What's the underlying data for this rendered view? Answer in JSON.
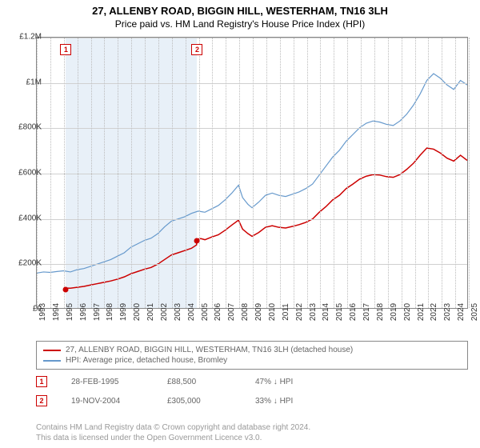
{
  "titles": {
    "line1": "27, ALLENBY ROAD, BIGGIN HILL, WESTERHAM, TN16 3LH",
    "line2": "Price paid vs. HM Land Registry's House Price Index (HPI)"
  },
  "chart": {
    "type": "line",
    "background_color": "#ffffff",
    "grid_color": "#d0d0d0",
    "shaded_region_color": "#e8f0f8",
    "x": {
      "min": 1993,
      "max": 2025,
      "tick_step": 1,
      "labels": [
        "1993",
        "1994",
        "1995",
        "1996",
        "1997",
        "1998",
        "1999",
        "2000",
        "2001",
        "2002",
        "2003",
        "2004",
        "2005",
        "2006",
        "2007",
        "2008",
        "2009",
        "2010",
        "2011",
        "2012",
        "2013",
        "2014",
        "2015",
        "2016",
        "2017",
        "2018",
        "2019",
        "2020",
        "2021",
        "2022",
        "2023",
        "2024",
        "2025"
      ]
    },
    "y": {
      "min": 0,
      "max": 1200000,
      "tick_step": 200000,
      "labels": [
        "£0",
        "£200K",
        "£400K",
        "£600K",
        "£800K",
        "£1M",
        "£1.2M"
      ]
    },
    "series": [
      {
        "name": "hpi",
        "color": "#6699cc",
        "width": 1.2,
        "points": [
          [
            1993,
            155000
          ],
          [
            1993.5,
            160000
          ],
          [
            1994,
            158000
          ],
          [
            1994.5,
            162000
          ],
          [
            1995,
            165000
          ],
          [
            1995.5,
            160000
          ],
          [
            1996,
            170000
          ],
          [
            1996.5,
            175000
          ],
          [
            1997,
            185000
          ],
          [
            1997.5,
            195000
          ],
          [
            1998,
            205000
          ],
          [
            1998.5,
            215000
          ],
          [
            1999,
            230000
          ],
          [
            1999.5,
            245000
          ],
          [
            2000,
            270000
          ],
          [
            2000.5,
            285000
          ],
          [
            2001,
            300000
          ],
          [
            2001.5,
            310000
          ],
          [
            2002,
            330000
          ],
          [
            2002.5,
            360000
          ],
          [
            2003,
            385000
          ],
          [
            2003.5,
            395000
          ],
          [
            2004,
            405000
          ],
          [
            2004.5,
            420000
          ],
          [
            2005,
            430000
          ],
          [
            2005.5,
            425000
          ],
          [
            2006,
            440000
          ],
          [
            2006.5,
            455000
          ],
          [
            2007,
            480000
          ],
          [
            2007.5,
            510000
          ],
          [
            2008,
            545000
          ],
          [
            2008.3,
            490000
          ],
          [
            2008.7,
            460000
          ],
          [
            2009,
            445000
          ],
          [
            2009.5,
            470000
          ],
          [
            2010,
            500000
          ],
          [
            2010.5,
            510000
          ],
          [
            2011,
            500000
          ],
          [
            2011.5,
            495000
          ],
          [
            2012,
            505000
          ],
          [
            2012.5,
            515000
          ],
          [
            2013,
            530000
          ],
          [
            2013.5,
            550000
          ],
          [
            2014,
            590000
          ],
          [
            2014.5,
            630000
          ],
          [
            2015,
            670000
          ],
          [
            2015.5,
            700000
          ],
          [
            2016,
            740000
          ],
          [
            2016.5,
            770000
          ],
          [
            2017,
            800000
          ],
          [
            2017.5,
            820000
          ],
          [
            2018,
            830000
          ],
          [
            2018.5,
            825000
          ],
          [
            2019,
            815000
          ],
          [
            2019.5,
            810000
          ],
          [
            2020,
            830000
          ],
          [
            2020.5,
            860000
          ],
          [
            2021,
            900000
          ],
          [
            2021.5,
            950000
          ],
          [
            2022,
            1010000
          ],
          [
            2022.5,
            1040000
          ],
          [
            2023,
            1020000
          ],
          [
            2023.5,
            990000
          ],
          [
            2024,
            970000
          ],
          [
            2024.5,
            1010000
          ],
          [
            2025,
            990000
          ]
        ]
      },
      {
        "name": "price_paid",
        "color": "#cc0000",
        "width": 1.5,
        "points": [
          [
            1995.16,
            88500
          ],
          [
            1995.5,
            88000
          ],
          [
            1996,
            92000
          ],
          [
            1996.5,
            96000
          ],
          [
            1997,
            102000
          ],
          [
            1997.5,
            108000
          ],
          [
            1998,
            114000
          ],
          [
            1998.5,
            120000
          ],
          [
            1999,
            128000
          ],
          [
            1999.5,
            138000
          ],
          [
            2000,
            152000
          ],
          [
            2000.5,
            162000
          ],
          [
            2001,
            172000
          ],
          [
            2001.5,
            180000
          ],
          [
            2002,
            195000
          ],
          [
            2002.5,
            215000
          ],
          [
            2003,
            235000
          ],
          [
            2003.5,
            245000
          ],
          [
            2004,
            255000
          ],
          [
            2004.5,
            265000
          ],
          [
            2004.88,
            280000
          ],
          [
            2004.88,
            305000
          ],
          [
            2005.2,
            308000
          ],
          [
            2005.5,
            303000
          ],
          [
            2006,
            315000
          ],
          [
            2006.5,
            325000
          ],
          [
            2007,
            345000
          ],
          [
            2007.5,
            368000
          ],
          [
            2008,
            390000
          ],
          [
            2008.3,
            350000
          ],
          [
            2008.7,
            330000
          ],
          [
            2009,
            318000
          ],
          [
            2009.5,
            335000
          ],
          [
            2010,
            358000
          ],
          [
            2010.5,
            365000
          ],
          [
            2011,
            358000
          ],
          [
            2011.5,
            355000
          ],
          [
            2012,
            362000
          ],
          [
            2012.5,
            370000
          ],
          [
            2013,
            380000
          ],
          [
            2013.5,
            395000
          ],
          [
            2014,
            425000
          ],
          [
            2014.5,
            450000
          ],
          [
            2015,
            480000
          ],
          [
            2015.5,
            500000
          ],
          [
            2016,
            530000
          ],
          [
            2016.5,
            550000
          ],
          [
            2017,
            572000
          ],
          [
            2017.5,
            585000
          ],
          [
            2018,
            592000
          ],
          [
            2018.5,
            590000
          ],
          [
            2019,
            583000
          ],
          [
            2019.5,
            580000
          ],
          [
            2020,
            592000
          ],
          [
            2020.5,
            615000
          ],
          [
            2021,
            642000
          ],
          [
            2021.5,
            678000
          ],
          [
            2022,
            710000
          ],
          [
            2022.5,
            705000
          ],
          [
            2023,
            688000
          ],
          [
            2023.5,
            665000
          ],
          [
            2024,
            652000
          ],
          [
            2024.5,
            678000
          ],
          [
            2025,
            655000
          ]
        ]
      }
    ],
    "sale_points": [
      {
        "marker": "1",
        "x": 1995.16,
        "y": 88500
      },
      {
        "marker": "2",
        "x": 2004.88,
        "y": 305000
      }
    ]
  },
  "legend": {
    "items": [
      {
        "color": "#cc0000",
        "label": "27, ALLENBY ROAD, BIGGIN HILL, WESTERHAM, TN16 3LH (detached house)"
      },
      {
        "color": "#6699cc",
        "label": "HPI: Average price, detached house, Bromley"
      }
    ]
  },
  "details": [
    {
      "marker": "1",
      "date": "28-FEB-1995",
      "price": "£88,500",
      "diff": "47% ↓ HPI"
    },
    {
      "marker": "2",
      "date": "19-NOV-2004",
      "price": "£305,000",
      "diff": "33% ↓ HPI"
    }
  ],
  "footer": {
    "line1": "Contains HM Land Registry data © Crown copyright and database right 2024.",
    "line2": "This data is licensed under the Open Government Licence v3.0."
  }
}
